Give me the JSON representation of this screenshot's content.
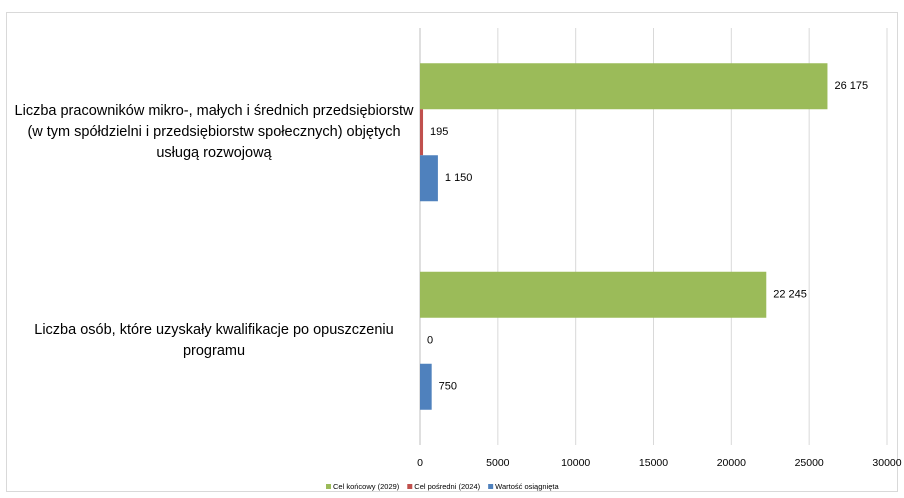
{
  "chart_data": {
    "type": "hbar",
    "categories": [
      "Liczba pracowników mikro-, małych i średnich przedsiębiorstw (w tym spółdzielni i przedsiębiorstw społecznych) objętych usługą rozwojową",
      "Liczba osób, które uzyskały kwalifikacje po opuszczeniu programu"
    ],
    "series": [
      {
        "name": "Cel końcowy (2029)",
        "color": "#9bbb59",
        "values": [
          26175,
          22245
        ],
        "value_labels": [
          "26 175",
          "22 245"
        ]
      },
      {
        "name": "Cel pośredni (2024)",
        "color": "#c0504d",
        "values": [
          195,
          0
        ],
        "value_labels": [
          "195",
          "0"
        ]
      },
      {
        "name": "Wartość osiągnięta",
        "color": "#4f81bd",
        "values": [
          1150,
          750
        ],
        "value_labels": [
          "1 150",
          "750"
        ]
      }
    ],
    "xlim": [
      0,
      30000
    ],
    "xticks": [
      0,
      5000,
      10000,
      15000,
      20000,
      25000,
      30000
    ],
    "grid": true,
    "legend": "bottom"
  }
}
